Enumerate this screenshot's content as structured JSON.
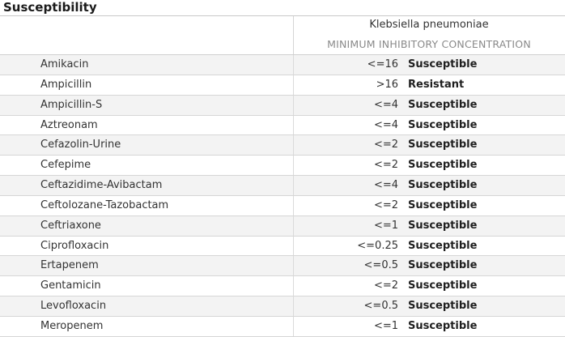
{
  "section_title": "Susceptibility",
  "organism": "Klebsiella pneumoniae",
  "column_header": "MINIMUM INHIBITORY CONCENTRATION",
  "rows": [
    {
      "drug": "Amikacin",
      "mic": "<=16",
      "interpretation": "Susceptible"
    },
    {
      "drug": "Ampicillin",
      "mic": ">16",
      "interpretation": "Resistant"
    },
    {
      "drug": "Ampicillin-S",
      "mic": "<=4",
      "interpretation": "Susceptible"
    },
    {
      "drug": "Aztreonam",
      "mic": "<=4",
      "interpretation": "Susceptible"
    },
    {
      "drug": "Cefazolin-Urine",
      "mic": "<=2",
      "interpretation": "Susceptible"
    },
    {
      "drug": "Cefepime",
      "mic": "<=2",
      "interpretation": "Susceptible"
    },
    {
      "drug": "Ceftazidime-Avibactam",
      "mic": "<=4",
      "interpretation": "Susceptible"
    },
    {
      "drug": "Ceftolozane-Tazobactam",
      "mic": "<=2",
      "interpretation": "Susceptible"
    },
    {
      "drug": "Ceftriaxone",
      "mic": "<=1",
      "interpretation": "Susceptible"
    },
    {
      "drug": "Ciprofloxacin",
      "mic": "<=0.25",
      "interpretation": "Susceptible"
    },
    {
      "drug": "Ertapenem",
      "mic": "<=0.5",
      "interpretation": "Susceptible"
    },
    {
      "drug": "Gentamicin",
      "mic": "<=2",
      "interpretation": "Susceptible"
    },
    {
      "drug": "Levofloxacin",
      "mic": "<=0.5",
      "interpretation": "Susceptible"
    },
    {
      "drug": "Meropenem",
      "mic": "<=1",
      "interpretation": "Susceptible"
    }
  ]
}
